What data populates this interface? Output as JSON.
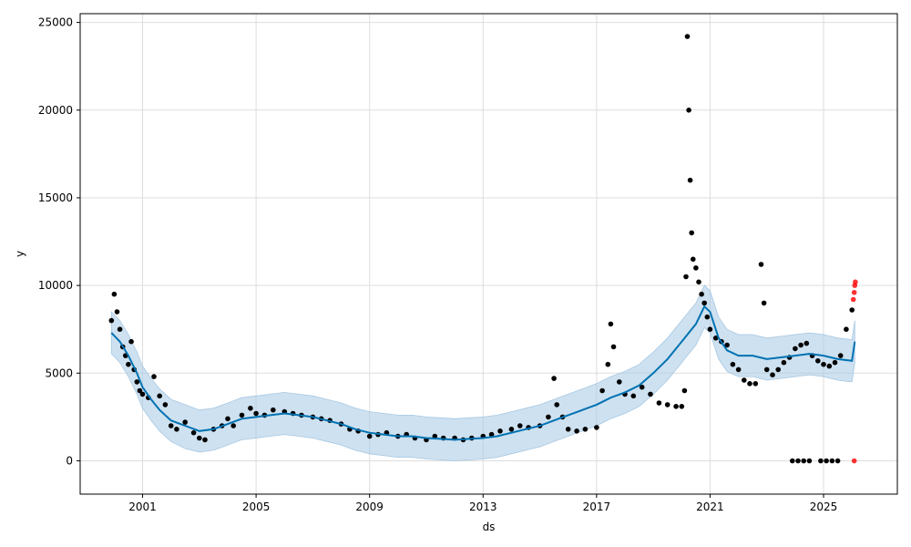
{
  "chart_data": {
    "type": "scatter",
    "title": "",
    "xlabel": "ds",
    "ylabel": "y",
    "x_tick_labels": [
      "2001",
      "2005",
      "2009",
      "2013",
      "2017",
      "2021",
      "2025"
    ],
    "x_ticks": [
      2001,
      2005,
      2009,
      2013,
      2017,
      2021,
      2025
    ],
    "y_ticks": [
      0,
      5000,
      10000,
      15000,
      20000,
      25000
    ],
    "y_tick_labels": [
      "0",
      "5000",
      "10000",
      "15000",
      "20000",
      "25000"
    ],
    "xlim": [
      1998.8,
      2027.6
    ],
    "ylim": [
      -1900,
      25500
    ],
    "grid": true,
    "colors": {
      "observed": "#000000",
      "forecast": "#0072b2",
      "interval": "#a6c8e3",
      "future_points": "#ff0000"
    },
    "forecast": {
      "x": [
        1999.9,
        2000.2,
        2000.5,
        2000.8,
        2001.0,
        2001.3,
        2001.6,
        2002.0,
        2002.5,
        2003.0,
        2003.5,
        2004.0,
        2004.5,
        2005.0,
        2005.5,
        2006.0,
        2006.5,
        2007.0,
        2007.5,
        2008.0,
        2008.5,
        2009.0,
        2009.5,
        2010.0,
        2010.5,
        2011.0,
        2011.5,
        2012.0,
        2012.5,
        2013.0,
        2013.5,
        2014.0,
        2014.5,
        2015.0,
        2015.5,
        2016.0,
        2016.5,
        2017.0,
        2017.5,
        2018.0,
        2018.5,
        2019.0,
        2019.5,
        2020.0,
        2020.5,
        2020.8,
        2021.0,
        2021.3,
        2021.6,
        2022.0,
        2022.5,
        2023.0,
        2023.5,
        2024.0,
        2024.5,
        2025.0,
        2025.5,
        2026.0,
        2026.1
      ],
      "yhat": [
        7300,
        6800,
        6000,
        5000,
        4200,
        3500,
        2900,
        2300,
        2000,
        1700,
        1800,
        2100,
        2400,
        2500,
        2600,
        2700,
        2600,
        2500,
        2300,
        2100,
        1800,
        1600,
        1500,
        1400,
        1400,
        1300,
        1250,
        1200,
        1250,
        1300,
        1400,
        1600,
        1800,
        2000,
        2300,
        2600,
        2900,
        3200,
        3600,
        3900,
        4300,
        5000,
        5800,
        6800,
        7800,
        8800,
        8500,
        7000,
        6300,
        6000,
        6000,
        5800,
        5900,
        6000,
        6100,
        6000,
        5800,
        5700,
        6800
      ],
      "yhat_lower": [
        6100,
        5600,
        4800,
        3800,
        3000,
        2300,
        1700,
        1100,
        700,
        500,
        600,
        900,
        1200,
        1300,
        1400,
        1500,
        1400,
        1300,
        1100,
        900,
        600,
        400,
        300,
        200,
        200,
        100,
        50,
        0,
        50,
        100,
        200,
        400,
        600,
        800,
        1100,
        1400,
        1700,
        2000,
        2400,
        2700,
        3100,
        3800,
        4600,
        5600,
        6600,
        7600,
        7300,
        5800,
        5100,
        4800,
        4800,
        4600,
        4700,
        4800,
        4900,
        4800,
        4600,
        4500,
        5600
      ],
      "yhat_upper": [
        8500,
        8000,
        7200,
        6200,
        5400,
        4700,
        4100,
        3500,
        3200,
        2900,
        3000,
        3300,
        3600,
        3700,
        3800,
        3900,
        3800,
        3700,
        3500,
        3300,
        3000,
        2800,
        2700,
        2600,
        2600,
        2500,
        2450,
        2400,
        2450,
        2500,
        2600,
        2800,
        3000,
        3200,
        3500,
        3800,
        4100,
        4400,
        4800,
        5100,
        5500,
        6200,
        7000,
        8000,
        9000,
        10000,
        9700,
        8200,
        7500,
        7200,
        7200,
        7000,
        7100,
        7200,
        7300,
        7200,
        7000,
        6900,
        8000
      ]
    },
    "observed": {
      "x": [
        1999.9,
        2000.0,
        2000.1,
        2000.2,
        2000.3,
        2000.4,
        2000.5,
        2000.6,
        2000.7,
        2000.8,
        2000.9,
        2001.0,
        2001.2,
        2001.4,
        2001.6,
        2001.8,
        2002.0,
        2002.2,
        2002.5,
        2002.8,
        2003.0,
        2003.2,
        2003.5,
        2003.8,
        2004.0,
        2004.2,
        2004.5,
        2004.8,
        2005.0,
        2005.3,
        2005.6,
        2006.0,
        2006.3,
        2006.6,
        2007.0,
        2007.3,
        2007.6,
        2008.0,
        2008.3,
        2008.6,
        2009.0,
        2009.3,
        2009.6,
        2010.0,
        2010.3,
        2010.6,
        2011.0,
        2011.3,
        2011.6,
        2012.0,
        2012.3,
        2012.6,
        2013.0,
        2013.3,
        2013.6,
        2014.0,
        2014.3,
        2014.6,
        2015.0,
        2015.3,
        2015.5,
        2015.6,
        2015.8,
        2016.0,
        2016.3,
        2016.6,
        2017.0,
        2017.2,
        2017.4,
        2017.5,
        2017.6,
        2017.8,
        2018.0,
        2018.3,
        2018.6,
        2018.9,
        2019.2,
        2019.5,
        2019.8,
        2020.0,
        2020.1,
        2020.15,
        2020.2,
        2020.25,
        2020.3,
        2020.35,
        2020.4,
        2020.5,
        2020.6,
        2020.7,
        2020.8,
        2020.9,
        2021.0,
        2021.2,
        2021.4,
        2021.6,
        2021.8,
        2022.0,
        2022.2,
        2022.4,
        2022.6,
        2022.8,
        2022.9,
        2023.0,
        2023.2,
        2023.4,
        2023.6,
        2023.8,
        2024.0,
        2024.2,
        2024.4,
        2024.6,
        2024.8,
        2025.0,
        2025.2,
        2025.4,
        2025.6,
        2025.8,
        2026.0,
        2023.9,
        2024.1,
        2024.3,
        2024.5,
        2024.9,
        2025.1,
        2025.3,
        2025.5
      ],
      "y": [
        8000,
        9500,
        8500,
        7500,
        6500,
        6000,
        5500,
        6800,
        5200,
        4500,
        4000,
        3800,
        3600,
        4800,
        3700,
        3200,
        2000,
        1800,
        2200,
        1600,
        1300,
        1200,
        1800,
        2000,
        2400,
        2000,
        2600,
        3000,
        2700,
        2600,
        2900,
        2800,
        2700,
        2600,
        2500,
        2400,
        2300,
        2100,
        1800,
        1700,
        1400,
        1500,
        1600,
        1400,
        1500,
        1300,
        1200,
        1400,
        1300,
        1300,
        1200,
        1300,
        1400,
        1500,
        1700,
        1800,
        2000,
        1900,
        2000,
        2500,
        4700,
        3200,
        2500,
        1800,
        1700,
        1800,
        1900,
        4000,
        5500,
        7800,
        6500,
        4500,
        3800,
        3700,
        4200,
        3800,
        3300,
        3200,
        3100,
        3100,
        4000,
        10500,
        24200,
        20000,
        16000,
        13000,
        11500,
        11000,
        10200,
        9500,
        9000,
        8200,
        7500,
        7000,
        6800,
        6600,
        5500,
        5200,
        4600,
        4400,
        4400,
        11200,
        9000,
        5200,
        4900,
        5200,
        5600,
        5900,
        6400,
        6600,
        6700,
        6000,
        5700,
        5500,
        5400,
        5600,
        6000,
        7500,
        8600,
        0,
        0,
        0,
        0,
        0,
        0,
        0,
        0
      ]
    },
    "future_points": {
      "x": [
        2026.05,
        2026.08,
        2026.1,
        2026.12,
        2026.08
      ],
      "y": [
        9200,
        9600,
        10000,
        10200,
        0
      ]
    }
  }
}
